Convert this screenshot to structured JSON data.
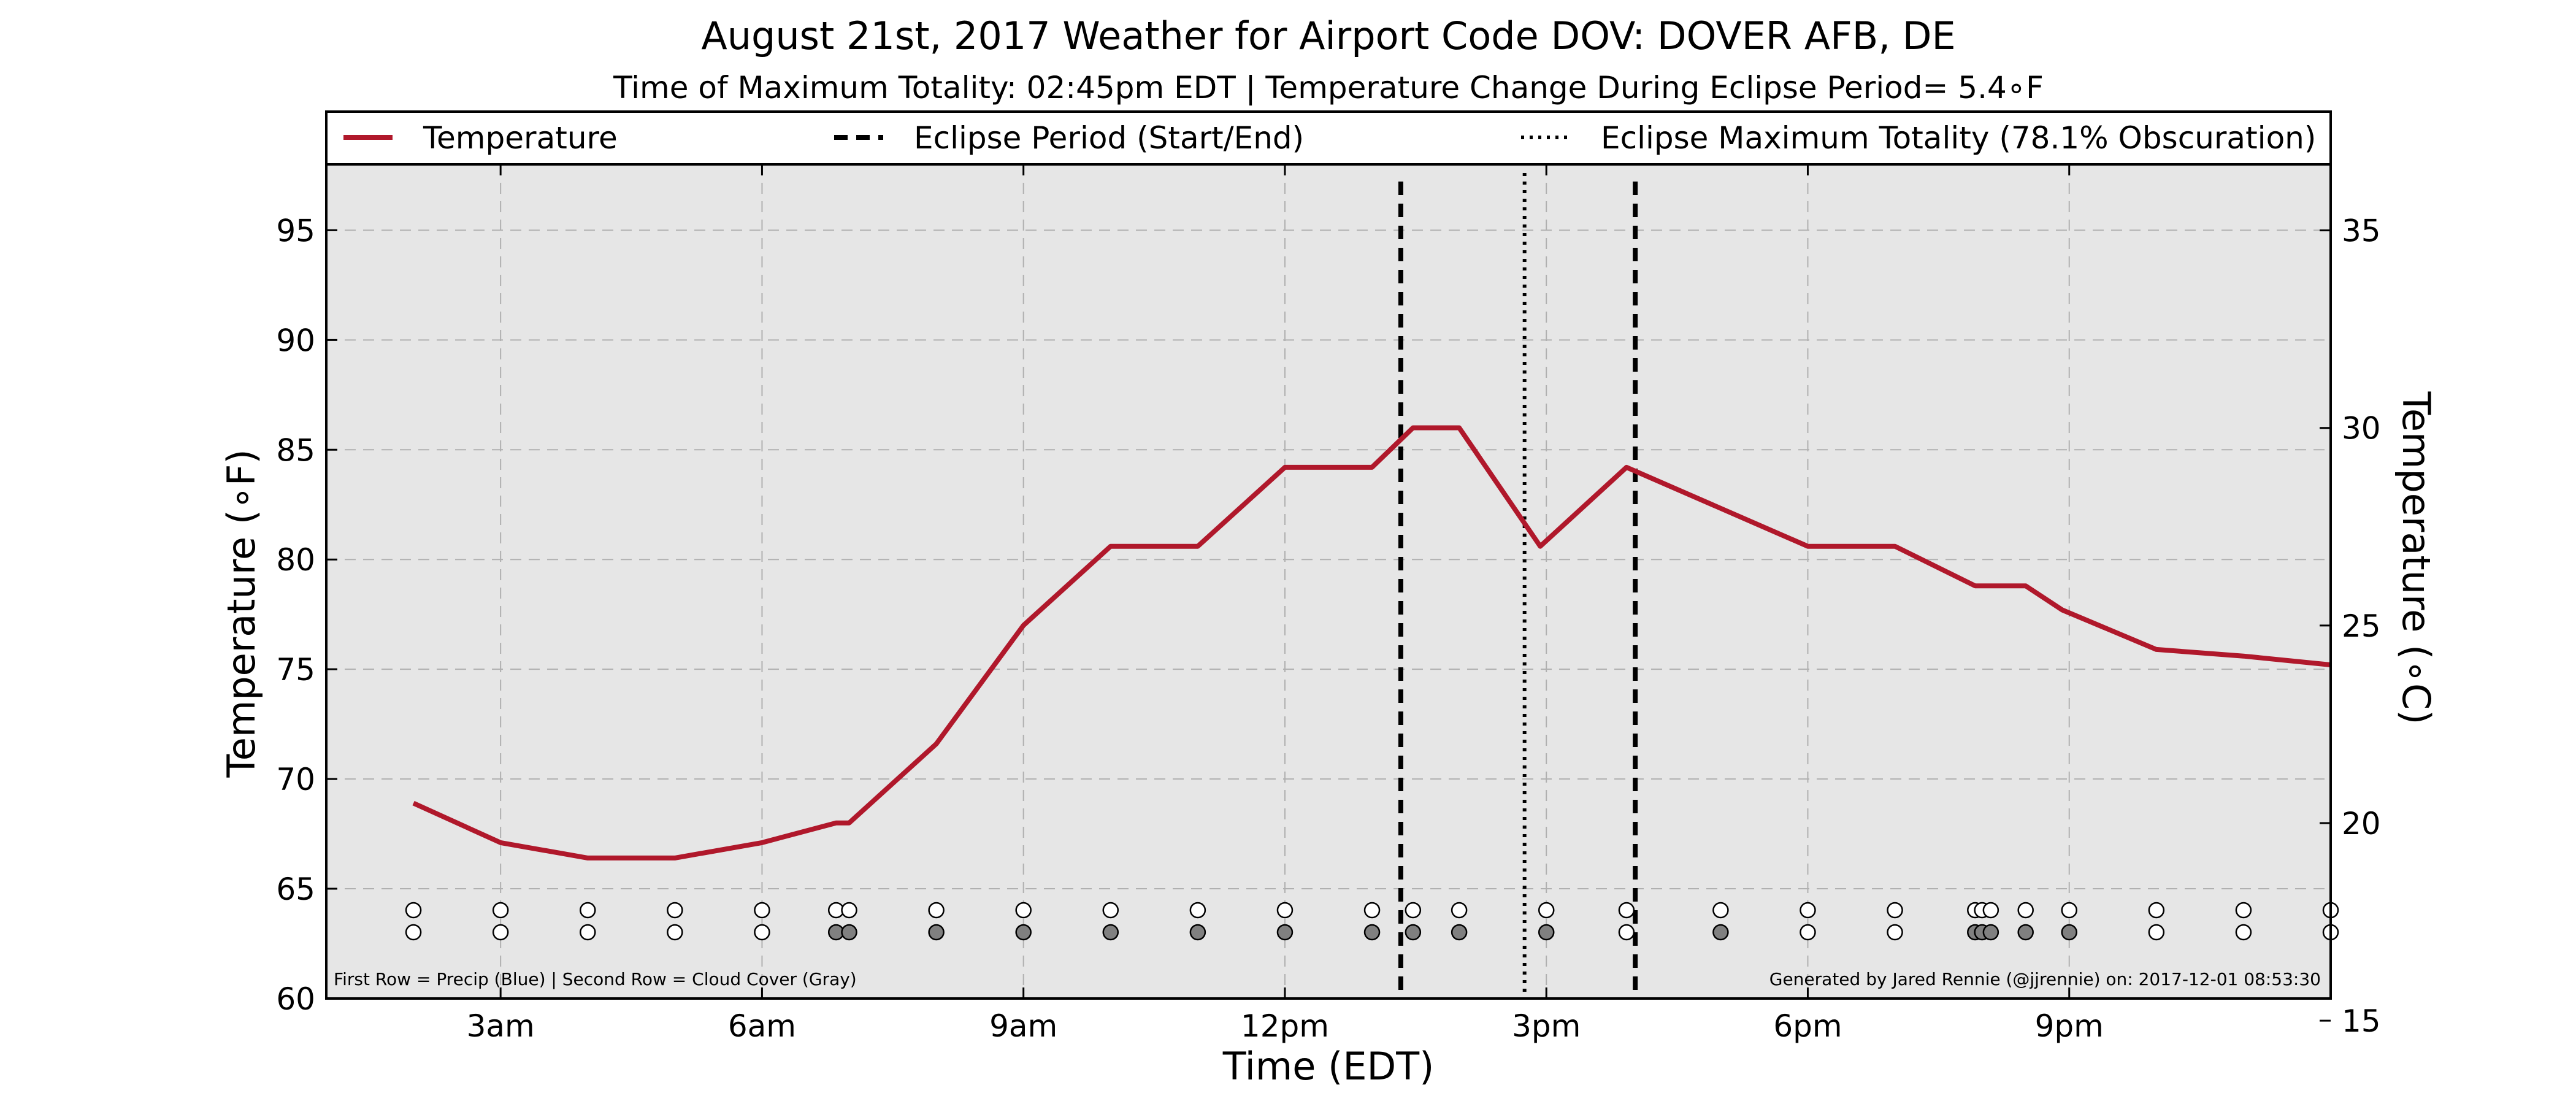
{
  "chart_data": {
    "type": "line",
    "title": "August 21st, 2017 Weather for Airport Code DOV: DOVER AFB, DE",
    "subtitle": "Time of Maximum Totality: 02:45pm EDT | Temperature Change During Eclipse Period= 5.4∘F",
    "xlabel": "Time (EDT)",
    "ylabel": "Temperature (∘F)",
    "ylabel_right": "Temperature (∘C)",
    "xlim": [
      1,
      24
    ],
    "ylim": [
      60,
      98
    ],
    "ylim_right": [
      15.56,
      36.67
    ],
    "grid": true,
    "legend_position": "top",
    "x_ticks": [
      {
        "value": 3,
        "label": "3am"
      },
      {
        "value": 6,
        "label": "6am"
      },
      {
        "value": 9,
        "label": "9am"
      },
      {
        "value": 12,
        "label": "12pm"
      },
      {
        "value": 15,
        "label": "3pm"
      },
      {
        "value": 18,
        "label": "6pm"
      },
      {
        "value": 21,
        "label": "9pm"
      }
    ],
    "y_ticks": [
      {
        "value": 60,
        "label": "60"
      },
      {
        "value": 65,
        "label": "65"
      },
      {
        "value": 70,
        "label": "70"
      },
      {
        "value": 75,
        "label": "75"
      },
      {
        "value": 80,
        "label": "80"
      },
      {
        "value": 85,
        "label": "85"
      },
      {
        "value": 90,
        "label": "90"
      },
      {
        "value": 95,
        "label": "95"
      }
    ],
    "y_right_ticks": [
      {
        "value": 15,
        "label": "15"
      },
      {
        "value": 20,
        "label": "20"
      },
      {
        "value": 25,
        "label": "25"
      },
      {
        "value": 30,
        "label": "30"
      },
      {
        "value": 35,
        "label": "35"
      }
    ],
    "series": [
      {
        "name": "Temperature",
        "color": "#b0182b",
        "x": [
          2.0,
          3.0,
          4.0,
          5.0,
          6.0,
          6.85,
          7.0,
          8.0,
          9.0,
          10.0,
          11.0,
          12.0,
          13.0,
          13.47,
          14.0,
          14.93,
          15.92,
          18.0,
          19.0,
          19.92,
          20.5,
          20.92,
          22.0,
          23.0,
          24.0
        ],
        "y": [
          68.9,
          67.1,
          66.4,
          66.4,
          67.1,
          68.0,
          68.0,
          71.6,
          77.0,
          80.6,
          80.6,
          84.2,
          84.2,
          86.0,
          86.0,
          80.6,
          84.2,
          80.6,
          80.6,
          78.8,
          78.8,
          77.7,
          75.9,
          75.6,
          75.2
        ]
      }
    ],
    "eclipse_period": {
      "label": "Eclipse Period (Start/End)",
      "start": 13.33,
      "end": 16.02
    },
    "eclipse_max": {
      "label": "Eclipse Maximum Totality (78.1% Obscuration)",
      "time": 14.75
    },
    "obs_times": [
      2.0,
      3.0,
      4.0,
      5.0,
      6.0,
      6.85,
      7.0,
      8.0,
      9.0,
      10.0,
      11.0,
      12.0,
      13.0,
      13.47,
      14.0,
      15.0,
      15.92,
      17.0,
      18.0,
      19.0,
      19.92,
      20.0,
      20.1,
      20.5,
      21.0,
      22.0,
      23.0,
      24.0
    ],
    "cloud_cover": [
      0,
      0,
      0,
      0,
      0,
      1,
      1,
      1,
      1,
      1,
      1,
      1,
      1,
      1,
      1,
      1,
      0,
      1,
      0,
      0,
      1,
      1,
      1,
      1,
      1,
      0,
      0,
      0
    ],
    "precip_color": "#ffffff",
    "cloud_color": "#808080",
    "row_note": "First Row = Precip (Blue) | Second Row = Cloud Cover (Gray)",
    "credit": "Generated by Jared Rennie (@jjrennie) on: 2017-12-01 08:53:30"
  }
}
